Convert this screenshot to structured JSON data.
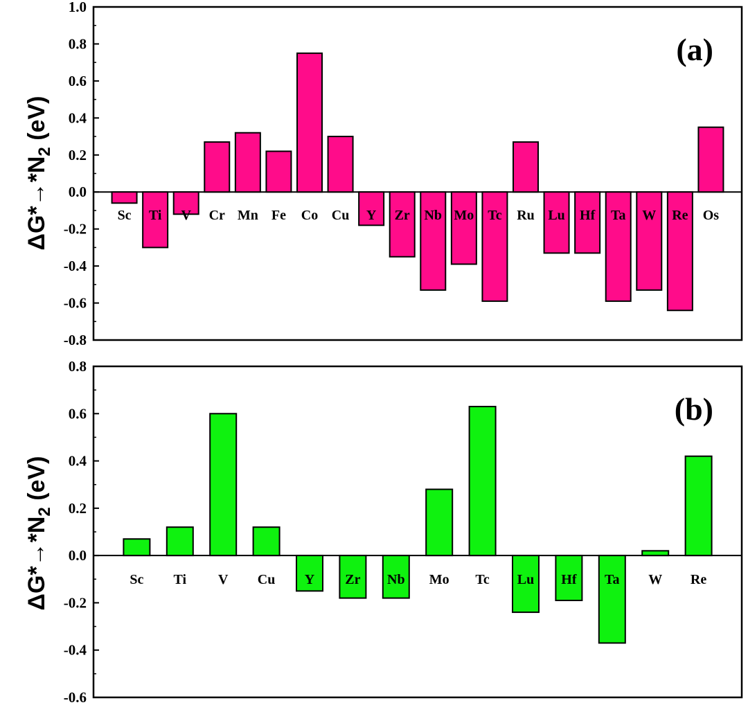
{
  "chart_data": [
    {
      "type": "bar",
      "panel_label": "(a)",
      "ylabel": "ΔG*→*N2 (eV)",
      "ylim": [
        -0.8,
        1.0
      ],
      "yticks": [
        "1.0",
        "0.8",
        "0.6",
        "0.4",
        "0.2",
        "0.0",
        "-0.2",
        "-0.4",
        "-0.6",
        "-0.8"
      ],
      "bar_color": "#ff0c8a",
      "categories": [
        "Sc",
        "Ti",
        "V",
        "Cr",
        "Mn",
        "Fe",
        "Co",
        "Cu",
        "Y",
        "Zr",
        "Nb",
        "Mo",
        "Tc",
        "Ru",
        "Lu",
        "Hf",
        "Ta",
        "W",
        "Re",
        "Os"
      ],
      "values": [
        -0.06,
        -0.3,
        -0.12,
        0.27,
        0.32,
        0.22,
        0.75,
        0.3,
        -0.18,
        -0.35,
        -0.53,
        -0.39,
        -0.59,
        0.27,
        -0.33,
        -0.33,
        -0.59,
        -0.53,
        -0.64,
        0.35
      ]
    },
    {
      "type": "bar",
      "panel_label": "(b)",
      "ylabel": "ΔG*→*N2 (eV)",
      "ylim": [
        -0.6,
        0.8
      ],
      "yticks": [
        "0.8",
        "0.6",
        "0.4",
        "0.2",
        "0.0",
        "-0.2",
        "-0.4",
        "-0.6"
      ],
      "bar_color": "#0ff20f",
      "categories": [
        "Sc",
        "Ti",
        "V",
        "Cu",
        "Y",
        "Zr",
        "Nb",
        "Mo",
        "Tc",
        "Lu",
        "Hf",
        "Ta",
        "W",
        "Re"
      ],
      "values": [
        0.07,
        0.12,
        0.6,
        0.12,
        -0.15,
        -0.18,
        -0.18,
        0.28,
        0.63,
        -0.24,
        -0.19,
        -0.37,
        0.02,
        0.42
      ]
    }
  ]
}
